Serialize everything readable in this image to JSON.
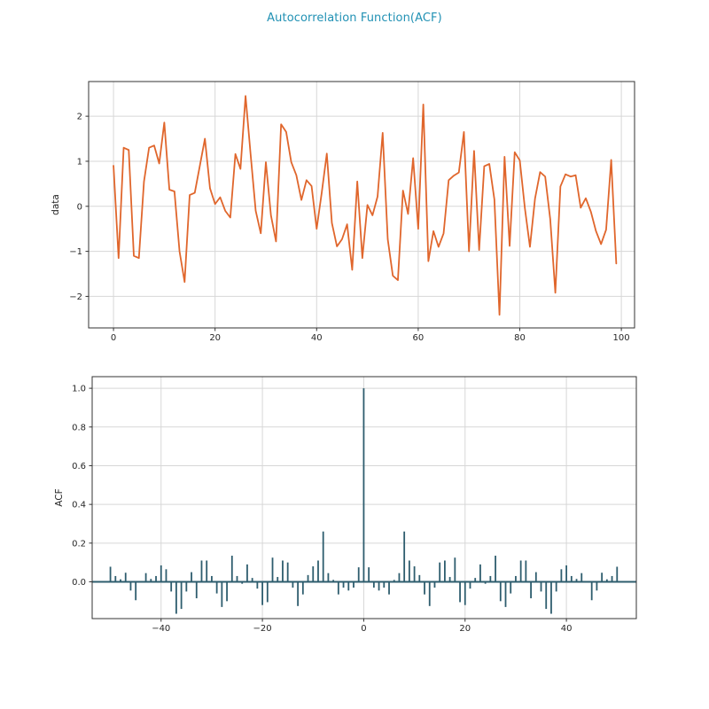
{
  "title": {
    "text": "Autocorrelation Function(ACF)",
    "color": "#2191b4"
  },
  "colors": {
    "background": "#ffffff",
    "spine": "#333333",
    "grid": "#d7d7d7",
    "tick_text": "#262626",
    "line": "#e0662c",
    "stem": "#2e5d6e"
  },
  "chart_data": [
    {
      "type": "line",
      "ylabel": "data",
      "x_start": 0,
      "x_step": 1,
      "values": [
        0.9,
        -1.15,
        1.3,
        1.25,
        -1.1,
        -1.15,
        0.55,
        1.3,
        1.35,
        0.95,
        1.86,
        0.37,
        0.33,
        -1.0,
        -1.68,
        0.25,
        0.3,
        0.9,
        1.5,
        0.4,
        0.05,
        0.2,
        -0.1,
        -0.25,
        1.16,
        0.83,
        2.45,
        1.15,
        -0.1,
        -0.6,
        0.98,
        -0.2,
        -0.78,
        1.82,
        1.65,
        0.98,
        0.69,
        0.14,
        0.58,
        0.45,
        -0.5,
        0.3,
        1.17,
        -0.37,
        -0.89,
        -0.73,
        -0.4,
        -1.41,
        0.55,
        -1.15,
        0.03,
        -0.2,
        0.22,
        1.63,
        -0.73,
        -1.54,
        -1.64,
        0.35,
        -0.17,
        1.07,
        -0.5,
        2.26,
        -1.22,
        -0.55,
        -0.9,
        -0.6,
        0.58,
        0.68,
        0.75,
        1.65,
        -1.0,
        1.23,
        -0.97,
        0.89,
        0.94,
        0.15,
        -2.41,
        1.1,
        -0.88,
        1.2,
        1.02,
        -0.04,
        -0.9,
        0.17,
        0.76,
        0.66,
        -0.29,
        -1.92,
        0.44,
        0.71,
        0.66,
        0.69,
        -0.03,
        0.18,
        -0.12,
        -0.55,
        -0.84,
        -0.52,
        1.03,
        -1.27
      ],
      "xlim": [
        -4.9,
        102.6
      ],
      "ylim": [
        -2.7,
        2.77
      ],
      "xticks": [
        {
          "v": 0,
          "label": "0"
        },
        {
          "v": 20,
          "label": "20"
        },
        {
          "v": 40,
          "label": "40"
        },
        {
          "v": 60,
          "label": "60"
        },
        {
          "v": 80,
          "label": "80"
        },
        {
          "v": 100,
          "label": "100"
        }
      ],
      "yticks": [
        {
          "v": -2,
          "label": "−2"
        },
        {
          "v": -1,
          "label": "−1"
        },
        {
          "v": 0,
          "label": "0"
        },
        {
          "v": 1,
          "label": "1"
        },
        {
          "v": 2,
          "label": "2"
        }
      ],
      "grid": true,
      "legend": "none"
    },
    {
      "type": "stem",
      "ylabel": "ACF",
      "lag_range": [
        -50,
        50
      ],
      "symmetric": true,
      "acf_lag0_to_50": [
        1.0,
        0.075,
        -0.03,
        -0.045,
        -0.03,
        -0.065,
        0.01,
        0.045,
        0.26,
        0.11,
        0.08,
        0.035,
        -0.065,
        -0.125,
        -0.03,
        0.1,
        0.11,
        0.025,
        0.125,
        -0.105,
        -0.12,
        -0.035,
        0.02,
        0.09,
        -0.01,
        0.03,
        0.135,
        -0.1,
        -0.13,
        -0.06,
        0.03,
        0.11,
        0.11,
        -0.085,
        0.05,
        -0.05,
        -0.14,
        -0.165,
        -0.05,
        0.065,
        0.085,
        0.03,
        0.015,
        0.045,
        0.0,
        -0.095,
        -0.045,
        0.047,
        0.013,
        0.03,
        0.078
      ],
      "xlim": [
        -53.6,
        53.8
      ],
      "ylim": [
        -0.19,
        1.06
      ],
      "xticks": [
        {
          "v": -40,
          "label": "−40"
        },
        {
          "v": -20,
          "label": "−20"
        },
        {
          "v": 0,
          "label": "0"
        },
        {
          "v": 20,
          "label": "20"
        },
        {
          "v": 40,
          "label": "40"
        }
      ],
      "yticks": [
        {
          "v": 0.0,
          "label": "0.0"
        },
        {
          "v": 0.2,
          "label": "0.2"
        },
        {
          "v": 0.4,
          "label": "0.4"
        },
        {
          "v": 0.6,
          "label": "0.6"
        },
        {
          "v": 0.8,
          "label": "0.8"
        },
        {
          "v": 1.0,
          "label": "1.0"
        }
      ],
      "grid": true,
      "legend": "none"
    }
  ]
}
